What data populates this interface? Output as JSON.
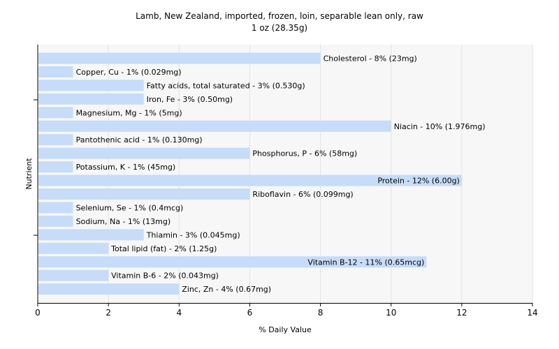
{
  "chart_data": {
    "type": "bar",
    "orientation": "horizontal",
    "title": "Lamb, New Zealand, imported, frozen, loin, separable lean only, raw",
    "subtitle": "1 oz (28.35g)",
    "xlabel": "% Daily Value",
    "ylabel": "Nutrient",
    "xlim": [
      0,
      14
    ],
    "xticks": [
      0,
      2,
      4,
      6,
      8,
      10,
      12,
      14
    ],
    "grid": true,
    "bar_color": "#c6dcf8",
    "bars": [
      {
        "label": "Cholesterol - 8% (23mg)",
        "value": 8
      },
      {
        "label": "Copper, Cu - 1% (0.029mg)",
        "value": 1
      },
      {
        "label": "Fatty acids, total saturated - 3% (0.530g)",
        "value": 3
      },
      {
        "label": "Iron, Fe - 3% (0.50mg)",
        "value": 3
      },
      {
        "label": "Magnesium, Mg - 1% (5mg)",
        "value": 1
      },
      {
        "label": "Niacin - 10% (1.976mg)",
        "value": 10
      },
      {
        "label": "Pantothenic acid - 1% (0.130mg)",
        "value": 1
      },
      {
        "label": "Phosphorus, P - 6% (58mg)",
        "value": 6
      },
      {
        "label": "Potassium, K - 1% (45mg)",
        "value": 1
      },
      {
        "label": "Protein - 12% (6.00g)",
        "value": 12
      },
      {
        "label": "Riboflavin - 6% (0.099mg)",
        "value": 6
      },
      {
        "label": "Selenium, Se - 1% (0.4mcg)",
        "value": 1
      },
      {
        "label": "Sodium, Na - 1% (13mg)",
        "value": 1
      },
      {
        "label": "Thiamin - 3% (0.045mg)",
        "value": 3
      },
      {
        "label": "Total lipid (fat) - 2% (1.25g)",
        "value": 2
      },
      {
        "label": "Vitamin B-12 - 11% (0.65mcg)",
        "value": 11
      },
      {
        "label": "Vitamin B-6 - 2% (0.043mg)",
        "value": 2
      },
      {
        "label": "Zinc, Zn - 4% (0.67mg)",
        "value": 4
      }
    ]
  }
}
